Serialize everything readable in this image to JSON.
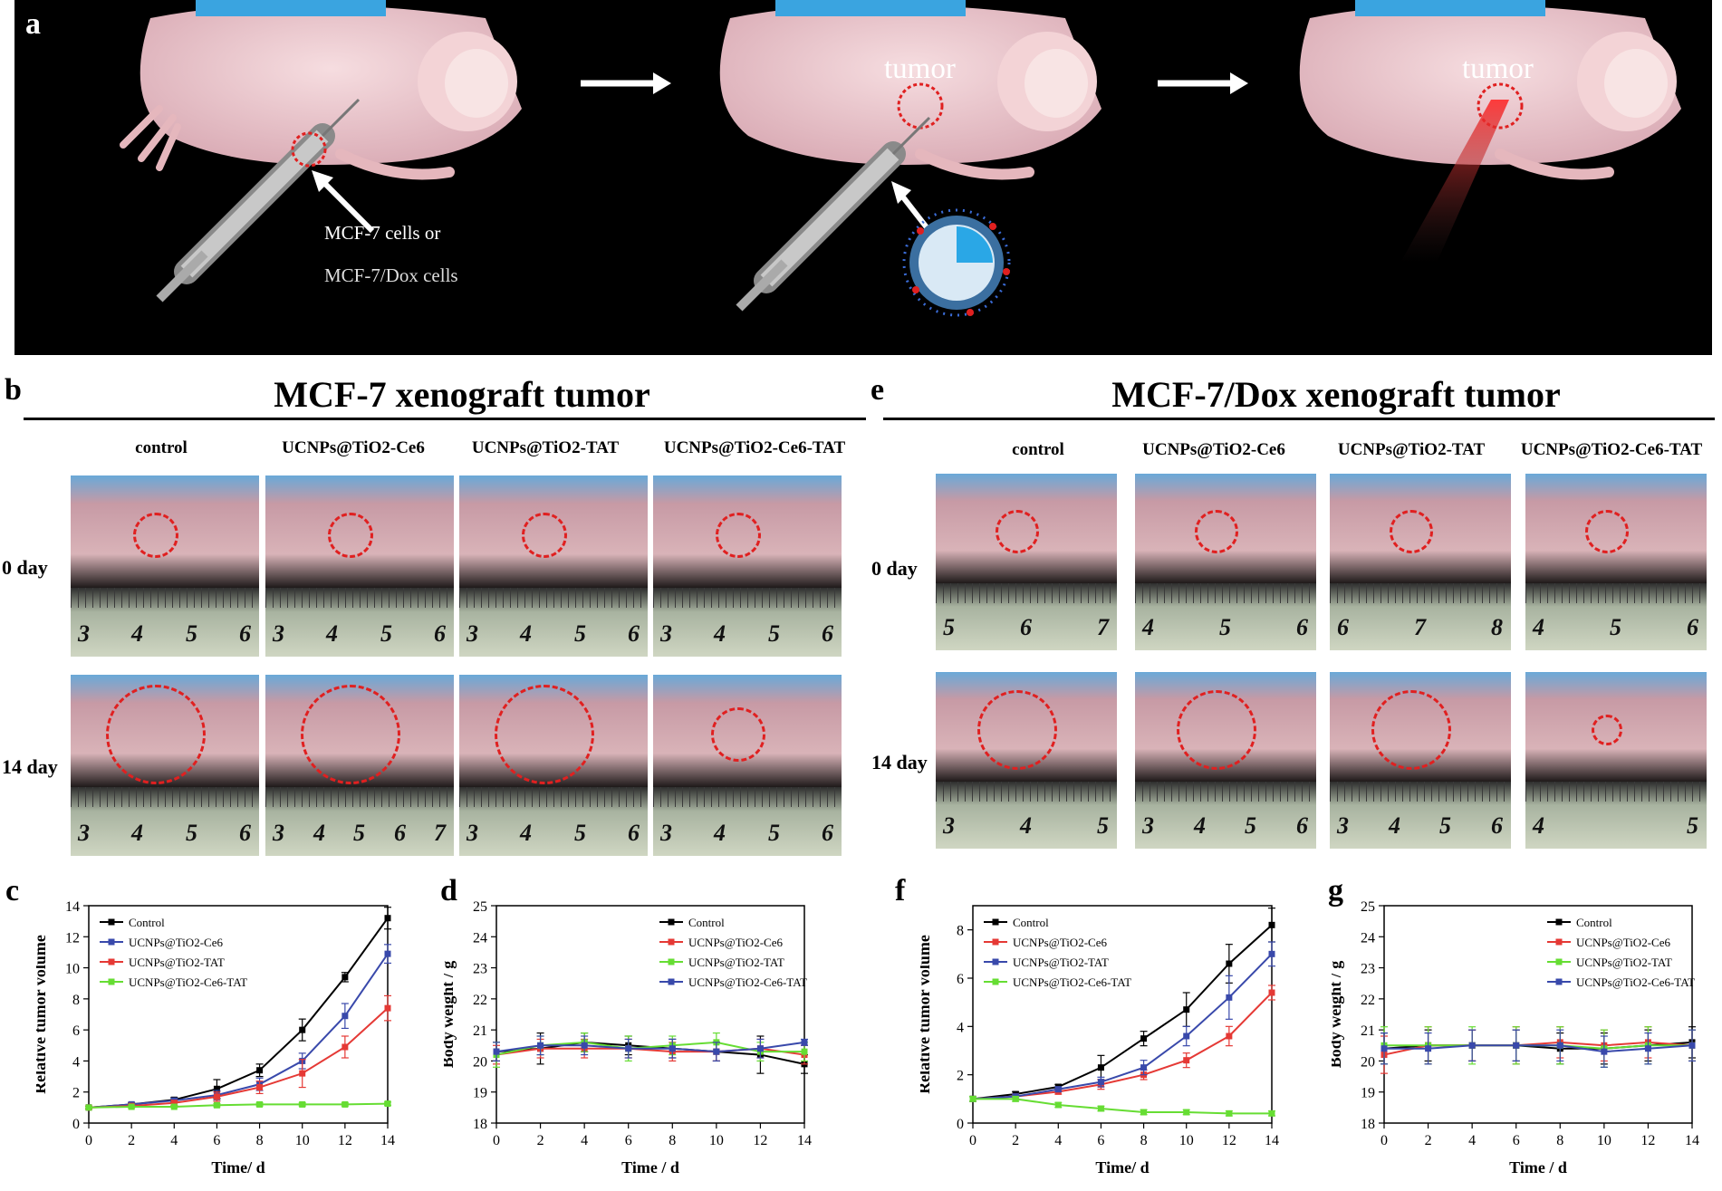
{
  "panel_a": {
    "letter": "a",
    "tumor_label_1": "tumor",
    "tumor_label_2": "tumor",
    "cells_line1": "MCF-7 cells or",
    "cells_line2": "MCF-7/Dox cells"
  },
  "panel_b": {
    "letter": "b",
    "title": "MCF-7 xenograft tumor",
    "columns": [
      "control",
      "UCNPs@TiO2-Ce6",
      "UCNPs@TiO2-TAT",
      "UCNPs@TiO2-Ce6-TAT"
    ],
    "rows": [
      "0 day",
      "14 day"
    ],
    "ruler_numbers": [
      [
        [
          "3",
          "4",
          "5",
          "6"
        ],
        [
          "3",
          "4",
          "5",
          "6"
        ],
        [
          "3",
          "4",
          "5",
          "6"
        ],
        [
          "3",
          "4",
          "5",
          "6"
        ]
      ],
      [
        [
          "3",
          "4",
          "5",
          "6"
        ],
        [
          "3",
          "4",
          "5",
          "6",
          "7"
        ],
        [
          "3",
          "4",
          "5",
          "6"
        ],
        [
          "3",
          "4",
          "5",
          "6"
        ]
      ]
    ]
  },
  "panel_e": {
    "letter": "e",
    "title": "MCF-7/Dox xenograft tumor",
    "columns": [
      "control",
      "UCNPs@TiO2-Ce6",
      "UCNPs@TiO2-TAT",
      "UCNPs@TiO2-Ce6-TAT"
    ],
    "rows": [
      "0 day",
      "14 day"
    ],
    "ruler_numbers": [
      [
        [
          "5",
          "6",
          "7"
        ],
        [
          "4",
          "5",
          "6"
        ],
        [
          "6",
          "7",
          "8"
        ],
        [
          "4",
          "5",
          "6"
        ]
      ],
      [
        [
          "3",
          "4",
          "5"
        ],
        [
          "3",
          "4",
          "5",
          "6"
        ],
        [
          "3",
          "4",
          "5",
          "6"
        ],
        [
          "4",
          "5"
        ]
      ]
    ]
  },
  "colors": {
    "control": "#000000",
    "ce6": "#e53935",
    "tat": "#3949ab",
    "ce6tat": "#66dd33",
    "tumor_ring": "#e02020"
  },
  "chart_data": [
    {
      "letter": "c",
      "type": "line",
      "xlabel": "Time/ d",
      "ylabel": "Relative tumor volume",
      "xlim": [
        0,
        14
      ],
      "ylim": [
        0,
        14
      ],
      "xticks": [
        0,
        2,
        4,
        6,
        8,
        10,
        12,
        14
      ],
      "yticks": [
        0,
        2,
        4,
        6,
        8,
        10,
        12,
        14
      ],
      "x": [
        0,
        2,
        4,
        6,
        8,
        10,
        12,
        14
      ],
      "legend": "top-left",
      "series": [
        {
          "name": "Control",
          "color": "#000000",
          "values": [
            1,
            1.2,
            1.5,
            2.2,
            3.4,
            6.0,
            9.4,
            13.2
          ],
          "err": [
            0.1,
            0.1,
            0.15,
            0.6,
            0.4,
            0.7,
            0.3,
            0.7
          ]
        },
        {
          "name": "UCNPs@TiO2-Ce6",
          "color": "#3949ab",
          "values": [
            1,
            1.2,
            1.45,
            1.8,
            2.5,
            4.0,
            6.9,
            10.9
          ],
          "err": [
            0.1,
            0.1,
            0.15,
            0.3,
            0.4,
            0.5,
            0.8,
            0.6
          ]
        },
        {
          "name": "UCNPs@TiO2-TAT",
          "color": "#e53935",
          "values": [
            1,
            1.1,
            1.3,
            1.7,
            2.3,
            3.2,
            4.9,
            7.4
          ],
          "err": [
            0.1,
            0.1,
            0.15,
            0.3,
            0.4,
            0.9,
            0.7,
            0.8
          ]
        },
        {
          "name": "UCNPs@TiO2-Ce6-TAT",
          "color": "#66dd33",
          "values": [
            1,
            1.05,
            1.05,
            1.15,
            1.2,
            1.2,
            1.2,
            1.25
          ],
          "err": [
            0.05,
            0.05,
            0.05,
            0.1,
            0.1,
            0.1,
            0.1,
            0.1
          ]
        }
      ]
    },
    {
      "letter": "d",
      "type": "line",
      "xlabel": "Time / d",
      "ylabel": "Body weight / g",
      "xlim": [
        0,
        14
      ],
      "ylim": [
        18,
        25
      ],
      "xticks": [
        0,
        2,
        4,
        6,
        8,
        10,
        12,
        14
      ],
      "yticks": [
        18,
        19,
        20,
        21,
        22,
        23,
        24,
        25
      ],
      "x": [
        0,
        2,
        4,
        6,
        8,
        10,
        12,
        14
      ],
      "legend": "top-right",
      "series": [
        {
          "name": "Control",
          "color": "#000000",
          "values": [
            20.3,
            20.4,
            20.6,
            20.5,
            20.4,
            20.3,
            20.2,
            19.9
          ],
          "err": [
            0.3,
            0.5,
            0.3,
            0.3,
            0.3,
            0.3,
            0.6,
            0.3
          ]
        },
        {
          "name": "UCNPs@TiO2-Ce6",
          "color": "#e53935",
          "values": [
            20.2,
            20.4,
            20.4,
            20.4,
            20.3,
            20.3,
            20.4,
            20.2
          ],
          "err": [
            0.3,
            0.3,
            0.3,
            0.3,
            0.3,
            0.3,
            0.3,
            0.3
          ]
        },
        {
          "name": "UCNPs@TiO2-TAT",
          "color": "#66dd33",
          "values": [
            20.2,
            20.5,
            20.6,
            20.4,
            20.5,
            20.6,
            20.3,
            20.3
          ],
          "err": [
            0.4,
            0.3,
            0.3,
            0.4,
            0.3,
            0.3,
            0.3,
            0.3
          ]
        },
        {
          "name": "UCNPs@TiO2-Ce6-TAT",
          "color": "#3949ab",
          "values": [
            20.3,
            20.5,
            20.5,
            20.4,
            20.4,
            20.3,
            20.4,
            20.6
          ],
          "err": [
            0.3,
            0.3,
            0.3,
            0.3,
            0.3,
            0.3,
            0.3,
            0.1
          ]
        }
      ]
    },
    {
      "letter": "f",
      "type": "line",
      "xlabel": "Time/ d",
      "ylabel": "Relative tumor volume",
      "xlim": [
        0,
        14
      ],
      "ylim": [
        0,
        9
      ],
      "xticks": [
        0,
        2,
        4,
        6,
        8,
        10,
        12,
        14
      ],
      "yticks": [
        0,
        2,
        4,
        6,
        8
      ],
      "x": [
        0,
        2,
        4,
        6,
        8,
        10,
        12,
        14
      ],
      "legend": "top-left",
      "series": [
        {
          "name": "Control",
          "color": "#000000",
          "values": [
            1,
            1.2,
            1.5,
            2.3,
            3.5,
            4.7,
            6.6,
            8.2
          ],
          "err": [
            0.1,
            0.1,
            0.1,
            0.5,
            0.3,
            0.7,
            0.8,
            0.7
          ]
        },
        {
          "name": "UCNPs@TiO2-Ce6",
          "color": "#e53935",
          "values": [
            1,
            1.1,
            1.3,
            1.6,
            2.0,
            2.6,
            3.6,
            5.4
          ],
          "err": [
            0.1,
            0.1,
            0.1,
            0.2,
            0.2,
            0.3,
            0.4,
            0.3
          ]
        },
        {
          "name": "UCNPs@TiO2-TAT",
          "color": "#3949ab",
          "values": [
            1,
            1.1,
            1.4,
            1.7,
            2.3,
            3.6,
            5.2,
            7.0
          ],
          "err": [
            0.1,
            0.1,
            0.1,
            0.2,
            0.3,
            0.4,
            0.9,
            0.5
          ]
        },
        {
          "name": "UCNPs@TiO2-Ce6-TAT",
          "color": "#66dd33",
          "values": [
            1,
            1.0,
            0.75,
            0.6,
            0.45,
            0.45,
            0.4,
            0.4
          ],
          "err": [
            0.1,
            0.1,
            0.1,
            0.1,
            0.1,
            0.1,
            0.1,
            0.1
          ]
        }
      ]
    },
    {
      "letter": "g",
      "type": "line",
      "xlabel": "Time / d",
      "ylabel": "Body weight / g",
      "xlim": [
        0,
        14
      ],
      "ylim": [
        18,
        25
      ],
      "xticks": [
        0,
        2,
        4,
        6,
        8,
        10,
        12,
        14
      ],
      "yticks": [
        18,
        19,
        20,
        21,
        22,
        23,
        24,
        25
      ],
      "x": [
        0,
        2,
        4,
        6,
        8,
        10,
        12,
        14
      ],
      "legend": "top-right",
      "series": [
        {
          "name": "Control",
          "color": "#000000",
          "values": [
            20.4,
            20.5,
            20.5,
            20.5,
            20.4,
            20.4,
            20.5,
            20.6
          ],
          "err": [
            0.5,
            0.5,
            0.5,
            0.5,
            0.5,
            0.5,
            0.5,
            0.5
          ]
        },
        {
          "name": "UCNPs@TiO2-Ce6",
          "color": "#e53935",
          "values": [
            20.2,
            20.5,
            20.5,
            20.5,
            20.6,
            20.5,
            20.6,
            20.5
          ],
          "err": [
            0.6,
            0.6,
            0.5,
            0.6,
            0.5,
            0.5,
            0.5,
            0.5
          ]
        },
        {
          "name": "UCNPs@TiO2-TAT",
          "color": "#66dd33",
          "values": [
            20.5,
            20.5,
            20.5,
            20.5,
            20.5,
            20.4,
            20.5,
            20.5
          ],
          "err": [
            0.6,
            0.6,
            0.6,
            0.6,
            0.6,
            0.6,
            0.6,
            0.5
          ]
        },
        {
          "name": "UCNPs@TiO2-Ce6-TAT",
          "color": "#3949ab",
          "values": [
            20.4,
            20.4,
            20.5,
            20.5,
            20.5,
            20.3,
            20.4,
            20.5
          ],
          "err": [
            0.5,
            0.5,
            0.5,
            0.5,
            0.5,
            0.5,
            0.5,
            0.5
          ]
        }
      ]
    }
  ]
}
